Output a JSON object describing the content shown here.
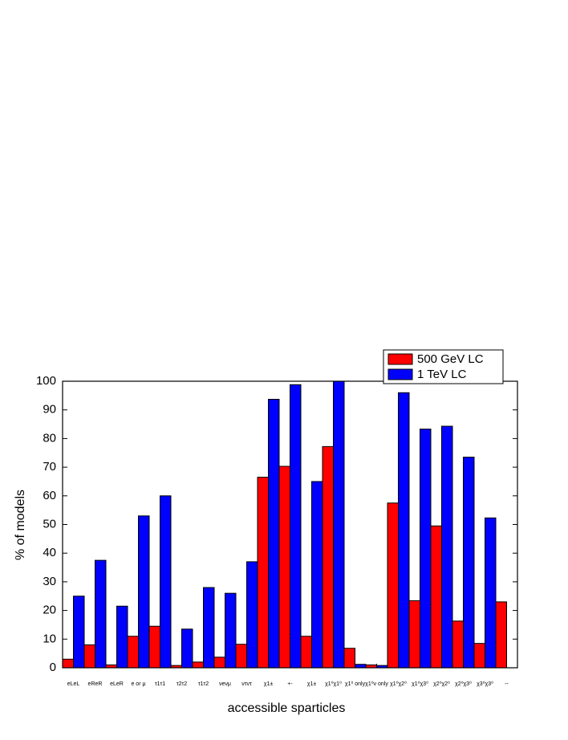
{
  "chart_data": {
    "type": "bar",
    "xlabel": "accessible sparticles",
    "ylabel": "% of models",
    "categories": [
      "eLeL",
      "eReR",
      "eLeR",
      "e or μ",
      "τ1τ1",
      "τ2τ2",
      "τ1τ2",
      "νeνμ",
      "ντντ",
      "χ1±",
      "+-",
      "χ1±",
      "χ1⁰χ1⁰",
      "χ1⁰ only",
      "χ1⁰ν only",
      "χ1⁰χ2⁰",
      "χ1⁰χ3⁰",
      "χ2⁰χ2⁰",
      "χ2⁰χ3⁰",
      "χ3⁰χ3⁰",
      "--"
    ],
    "series": [
      {
        "name": "500 GeV LC",
        "color": "#ff0000",
        "values": [
          3,
          8,
          1,
          11,
          14.5,
          0.8,
          2,
          3.7,
          8.2,
          66.5,
          70.3,
          11,
          77.2,
          6.8,
          1,
          57.5,
          23.4,
          49.5,
          16.3,
          8.5,
          23
        ]
      },
      {
        "name": "1 TeV LC",
        "color": "#0000ff",
        "values": [
          25,
          37.5,
          21.5,
          53,
          60,
          13.5,
          28,
          26,
          37,
          93.7,
          98.8,
          65,
          100,
          1.2,
          0.8,
          96,
          83.3,
          84.3,
          73.5,
          52.3,
          null
        ]
      }
    ],
    "ylim": [
      0,
      100
    ],
    "yticks": [
      0,
      10,
      20,
      30,
      40,
      50,
      60,
      70,
      80,
      90,
      100
    ],
    "legend": "top-right"
  }
}
